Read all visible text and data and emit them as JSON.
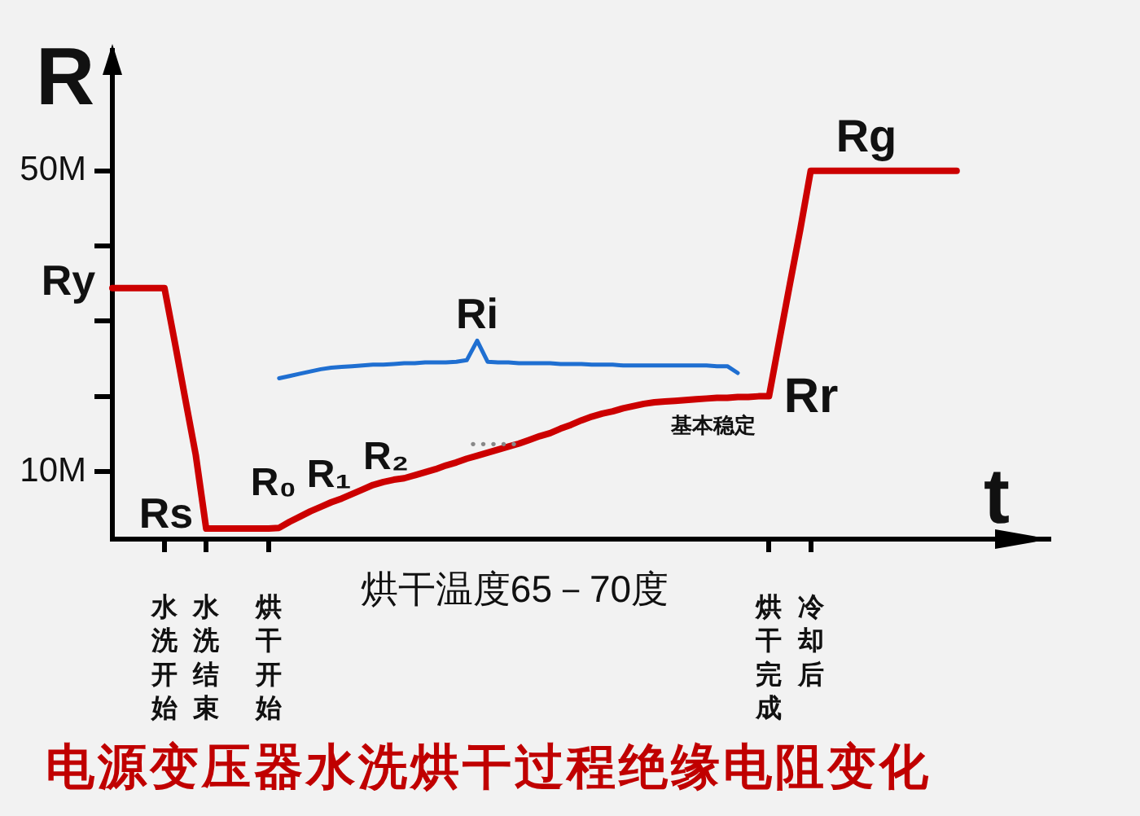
{
  "chart_data": {
    "type": "line",
    "title": "电源变压器水洗烘干过程绝缘电阻变化",
    "xlabel": "t",
    "ylabel": "R",
    "categories": [
      null,
      null,
      null,
      null,
      null,
      "水洗开始",
      null,
      null,
      null,
      "水洗结束",
      null,
      null,
      null,
      null,
      null,
      "烘干开始",
      null,
      null,
      null,
      null,
      null,
      null,
      null,
      null,
      null,
      null,
      null,
      null,
      null,
      null,
      null,
      null,
      null,
      null,
      null,
      null,
      null,
      null,
      null,
      null,
      null,
      null,
      null,
      null,
      null,
      null,
      null,
      null,
      null,
      null,
      null,
      null,
      null,
      null,
      null,
      null,
      null,
      null,
      null,
      null,
      null,
      null,
      null,
      "烘干完成",
      null,
      null,
      null,
      "冷却后",
      null,
      null,
      null,
      null,
      null,
      null,
      null,
      null,
      null,
      null,
      null,
      null,
      null,
      null,
      null,
      null,
      null,
      null,
      null,
      null,
      null,
      null,
      null
    ],
    "series": [
      {
        "color": "#cc0000",
        "values": [
          34.4,
          34.4,
          34.4,
          34.4,
          34.4,
          34.4,
          27.1,
          19.6,
          12.2,
          2.4,
          2.4,
          2.4,
          2.4,
          2.4,
          2.4,
          2.4,
          2.5,
          3.3,
          4.0,
          4.7,
          5.3,
          5.9,
          6.4,
          7.0,
          7.6,
          8.2,
          8.6,
          8.9,
          9.1,
          9.5,
          9.9,
          10.3,
          10.8,
          11.2,
          11.7,
          12.1,
          12.5,
          12.9,
          13.3,
          13.7,
          14.2,
          14.7,
          15.1,
          15.7,
          16.2,
          16.8,
          17.3,
          17.7,
          18.0,
          18.4,
          18.7,
          19.0,
          19.2,
          19.3,
          19.4,
          19.5,
          19.6,
          19.7,
          19.8,
          19.8,
          19.9,
          19.9,
          20.0,
          20.0,
          27.5,
          34.9,
          42.2,
          50,
          50,
          50,
          50,
          50,
          50,
          50,
          50,
          50,
          50,
          50,
          50,
          50,
          50,
          50,
          null,
          null,
          null,
          null,
          null,
          null,
          null,
          null,
          null
        ]
      },
      {
        "name": "Ri",
        "color": "#1f6fd1",
        "values": [
          null,
          null,
          null,
          null,
          null,
          null,
          null,
          null,
          null,
          null,
          null,
          null,
          null,
          null,
          null,
          null,
          22.4,
          22.7,
          23.0,
          23.3,
          23.6,
          23.8,
          23.9,
          24.0,
          24.1,
          24.2,
          24.2,
          24.3,
          24.4,
          24.4,
          24.5,
          24.5,
          24.5,
          24.6,
          24.8,
          27.4,
          24.6,
          24.5,
          24.5,
          24.4,
          24.4,
          24.4,
          24.4,
          24.3,
          24.3,
          24.3,
          24.2,
          24.2,
          24.2,
          24.1,
          24.1,
          24.1,
          24.1,
          24.1,
          24.1,
          24.1,
          24.1,
          24.1,
          24.0,
          24.0,
          23.1,
          null,
          null,
          null,
          null,
          null,
          null,
          null,
          null,
          null,
          null,
          null,
          null,
          null,
          null,
          null,
          null,
          null,
          null,
          null,
          null,
          null,
          null,
          null,
          null,
          null,
          null,
          null,
          null,
          null,
          null
        ]
      }
    ],
    "ylim": [
      1,
      66
    ],
    "yticks": [
      {
        "value": 10,
        "label": "10M"
      },
      {
        "value": 20,
        "label": null
      },
      {
        "value": 30,
        "label": null
      },
      {
        "value": 40,
        "label": null
      },
      {
        "value": 50,
        "label": "50M"
      }
    ],
    "annotations": [
      "Ry",
      "Rs",
      "R₀",
      "R₁",
      "R₂",
      "• • • • •",
      "基本稳定",
      "Rr",
      "Rg",
      "烘干温度65－70度"
    ]
  }
}
